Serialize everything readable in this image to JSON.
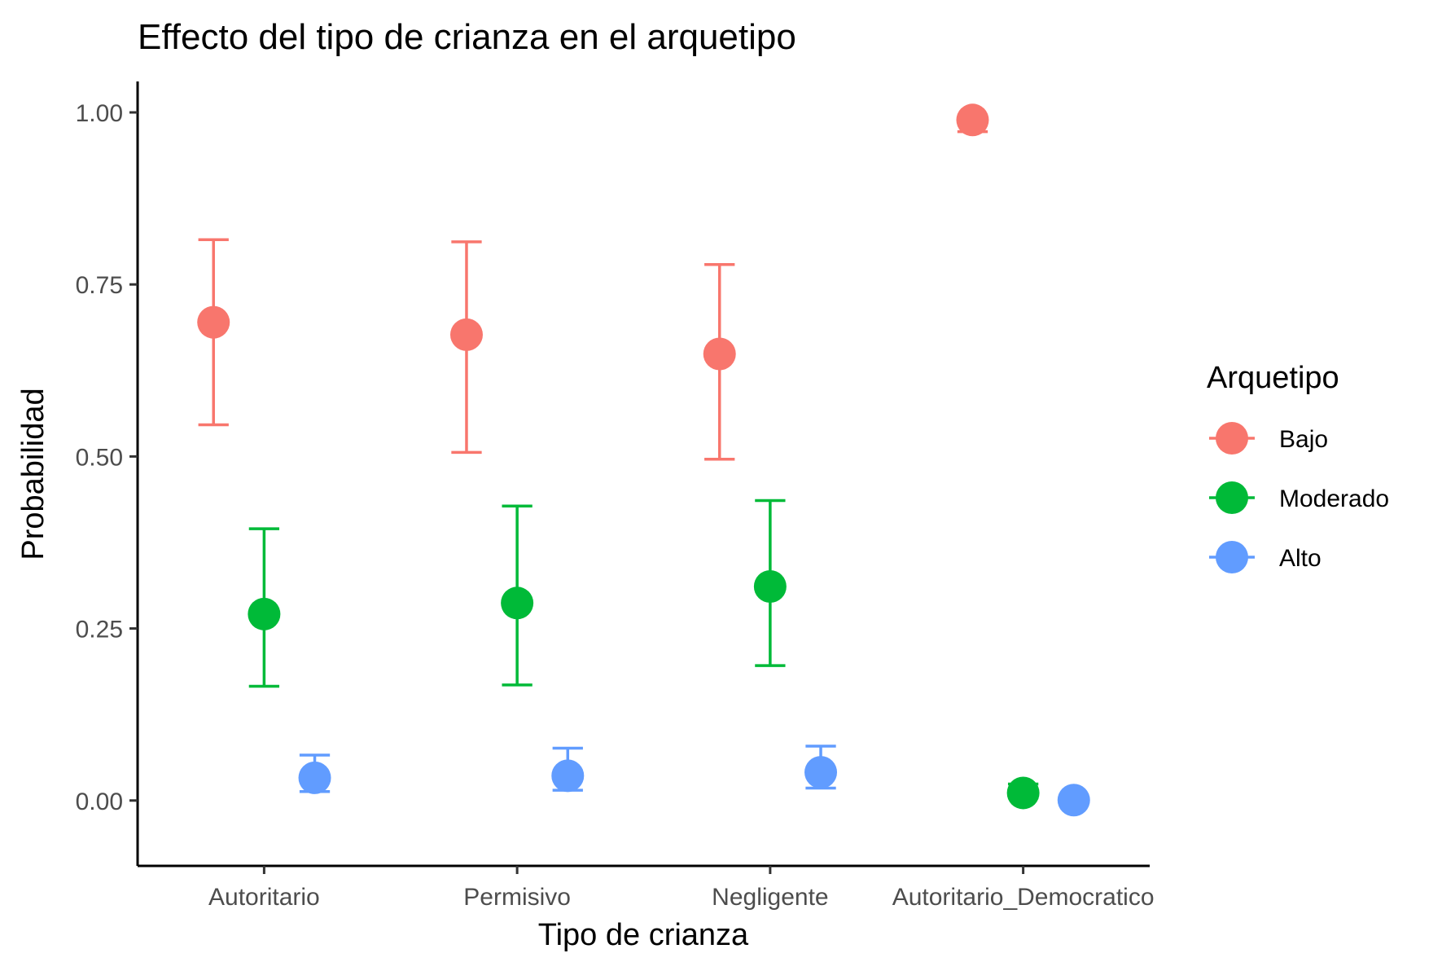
{
  "chart_data": {
    "type": "scatter",
    "title": "Effecto del tipo de crianza en el arquetipo",
    "xlabel": "Tipo de crianza",
    "ylabel": "Probabilidad",
    "categories": [
      "Autoritario",
      "Permisivo",
      "Negligente",
      "Autoritario_Democratico"
    ],
    "ylim": [
      -0.095,
      1.045
    ],
    "yticks": [
      0.0,
      0.25,
      0.5,
      0.75,
      1.0
    ],
    "ytick_labels": [
      "0.00",
      "0.25",
      "0.50",
      "0.75",
      "1.00"
    ],
    "grid": false,
    "legend": {
      "title": "Arquetipo",
      "position": "right"
    },
    "error_bars": true,
    "series": [
      {
        "name": "Bajo",
        "color": "#F8766D",
        "values": [
          0.695,
          0.677,
          0.649,
          0.989
        ],
        "lower": [
          0.546,
          0.506,
          0.496,
          0.972
        ],
        "upper": [
          0.815,
          0.812,
          0.779,
          0.995
        ]
      },
      {
        "name": "Moderado",
        "color": "#00BA38",
        "values": [
          0.271,
          0.287,
          0.311,
          0.011
        ],
        "lower": [
          0.166,
          0.168,
          0.196,
          0.004
        ],
        "upper": [
          0.395,
          0.428,
          0.436,
          0.024
        ]
      },
      {
        "name": "Alto",
        "color": "#619CFF",
        "values": [
          0.033,
          0.036,
          0.041,
          0.0006
        ],
        "lower": [
          0.013,
          0.015,
          0.018,
          0.0001
        ],
        "upper": [
          0.066,
          0.076,
          0.079,
          0.004
        ]
      }
    ]
  }
}
